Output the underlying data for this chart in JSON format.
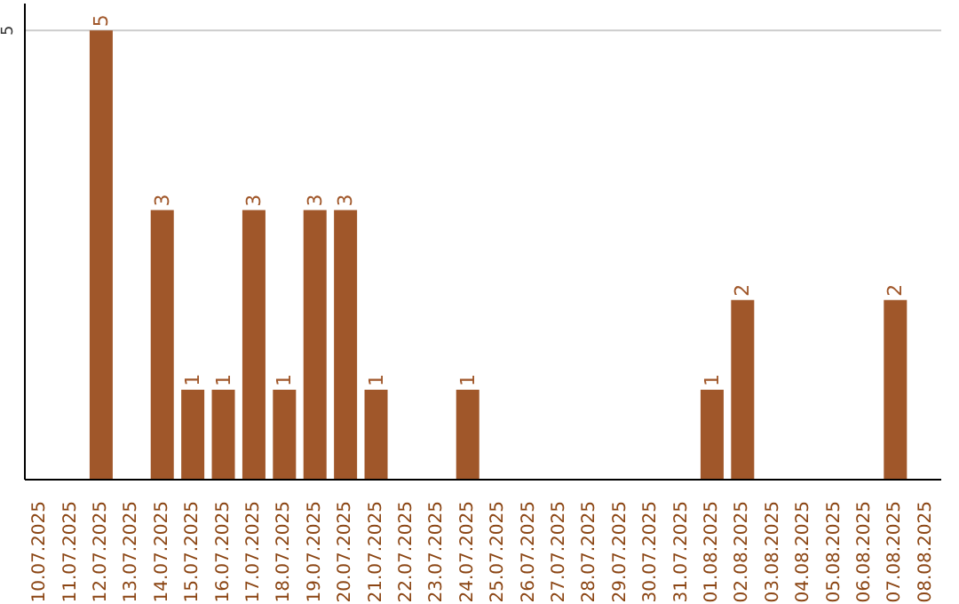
{
  "chart_data": {
    "type": "bar",
    "categories": [
      "10.07.2025",
      "11.07.2025",
      "12.07.2025",
      "13.07.2025",
      "14.07.2025",
      "15.07.2025",
      "16.07.2025",
      "17.07.2025",
      "18.07.2025",
      "19.07.2025",
      "20.07.2025",
      "21.07.2025",
      "22.07.2025",
      "23.07.2025",
      "24.07.2025",
      "25.07.2025",
      "26.07.2025",
      "27.07.2025",
      "28.07.2025",
      "29.07.2025",
      "30.07.2025",
      "31.07.2025",
      "01.08.2025",
      "02.08.2025",
      "03.08.2025",
      "04.08.2025",
      "05.08.2025",
      "06.08.2025",
      "07.08.2025",
      "08.08.2025"
    ],
    "values": [
      null,
      null,
      5,
      null,
      3,
      1,
      1,
      3,
      1,
      3,
      3,
      1,
      null,
      null,
      1,
      null,
      null,
      null,
      null,
      null,
      null,
      null,
      1,
      2,
      null,
      null,
      null,
      null,
      2,
      null
    ],
    "color": "#a0572a",
    "ylim": [
      0,
      5.3
    ],
    "yticks": [
      5
    ],
    "grid": "y",
    "data_labels": true
  }
}
